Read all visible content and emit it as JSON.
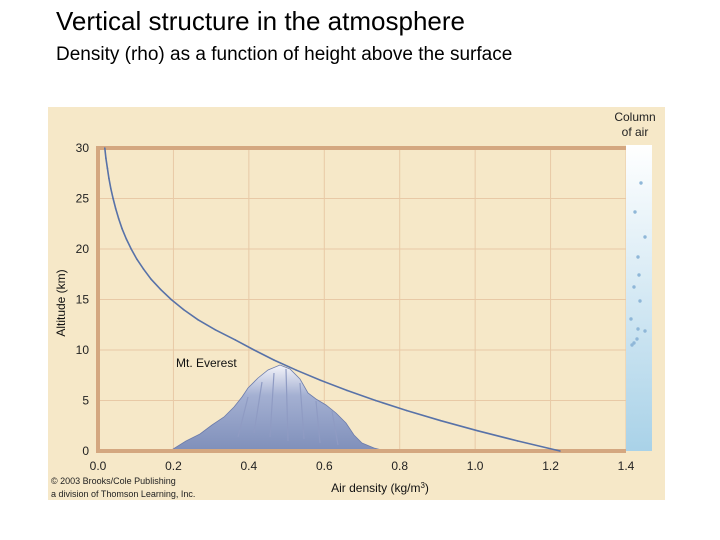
{
  "slide": {
    "title": "Vertical structure in the atmosphere",
    "subtitle": "Density (rho) as a function of height above the surface"
  },
  "chart_data": {
    "type": "line",
    "title": "",
    "xlabel": "Air density (kg/m3)",
    "ylabel": "Altitude (km)",
    "xlim": [
      0.0,
      1.4
    ],
    "ylim": [
      0,
      30
    ],
    "x_ticks": [
      "0.0",
      "0.2",
      "0.4",
      "0.6",
      "0.8",
      "1.0",
      "1.2",
      "1.4"
    ],
    "y_ticks": [
      "0",
      "5",
      "10",
      "15",
      "20",
      "25",
      "30"
    ],
    "grid": true,
    "series": [
      {
        "x": [
          1.225,
          1.112,
          1.007,
          0.909,
          0.819,
          0.736,
          0.66,
          0.59,
          0.526,
          0.467,
          0.414,
          0.364,
          0.311,
          0.265,
          0.227,
          0.194,
          0.166,
          0.141,
          0.121,
          0.103,
          0.088,
          0.075,
          0.064,
          0.055,
          0.047,
          0.04,
          0.034,
          0.029,
          0.025,
          0.021,
          0.018
        ],
        "y": [
          0,
          1,
          2,
          3,
          4,
          5,
          6,
          7,
          8,
          9,
          10,
          11,
          12,
          13,
          14,
          15,
          16,
          17,
          18,
          19,
          20,
          21,
          22,
          23,
          24,
          25,
          26,
          27,
          28,
          29,
          30
        ]
      }
    ],
    "annotations": {
      "mountain_label": "Mt. Everest",
      "column_label_line1": "Column",
      "column_label_line2": "of air",
      "credit_line1": "© 2003 Brooks/Cole Publishing",
      "credit_line2": "a division of Thomson Learning, Inc."
    },
    "colors": {
      "background": "#f6e8c8",
      "grid": "#e8c9a6",
      "axis": "#d4a780",
      "curve": "#5872a8",
      "mountain": "#7f8fba",
      "column_top": "#ffffff",
      "column_bottom": "#a9d2e8"
    }
  }
}
